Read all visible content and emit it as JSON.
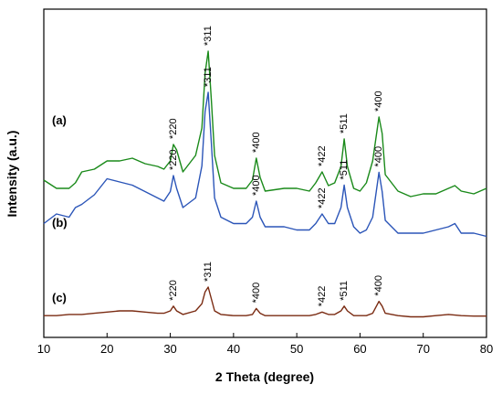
{
  "chart_data": {
    "type": "line",
    "xlabel": "2 Theta (degree)",
    "ylabel": "Intensity (a.u.)",
    "xlim": [
      10,
      80
    ],
    "xticks": [
      "10",
      "20",
      "30",
      "40",
      "50",
      "60",
      "70",
      "80"
    ],
    "yticks_shown": false,
    "grid": false,
    "series": [
      {
        "name": "(a)",
        "color": "#1a8a1a",
        "x": [
          10,
          12,
          14,
          15,
          16,
          18,
          20,
          22,
          24,
          26,
          28,
          29,
          30,
          30.5,
          31,
          32,
          34,
          35,
          35.5,
          36,
          36.5,
          37,
          38,
          40,
          42,
          43,
          43.6,
          44.2,
          45,
          48,
          50,
          52,
          53,
          54,
          55,
          56,
          57,
          57.5,
          58,
          59,
          60,
          61,
          62,
          63,
          63.5,
          64,
          66,
          68,
          70,
          72,
          74,
          75,
          76,
          78,
          80
        ],
        "y": [
          0.53,
          0.5,
          0.5,
          0.52,
          0.56,
          0.57,
          0.6,
          0.6,
          0.61,
          0.59,
          0.58,
          0.57,
          0.6,
          0.66,
          0.64,
          0.56,
          0.62,
          0.72,
          0.92,
          1.0,
          0.82,
          0.62,
          0.52,
          0.5,
          0.5,
          0.53,
          0.61,
          0.54,
          0.49,
          0.5,
          0.5,
          0.49,
          0.52,
          0.56,
          0.51,
          0.52,
          0.58,
          0.68,
          0.58,
          0.5,
          0.49,
          0.52,
          0.6,
          0.76,
          0.7,
          0.55,
          0.49,
          0.47,
          0.48,
          0.48,
          0.5,
          0.51,
          0.49,
          0.48,
          0.5
        ]
      },
      {
        "name": "(b)",
        "color": "#2b55b8",
        "x": [
          10,
          12,
          14,
          15,
          16,
          18,
          20,
          22,
          24,
          26,
          28,
          29,
          30,
          30.5,
          31,
          32,
          34,
          35,
          35.5,
          36,
          36.5,
          37,
          38,
          40,
          42,
          43,
          43.6,
          44.2,
          45,
          48,
          50,
          52,
          53,
          54,
          55,
          56,
          57,
          57.5,
          58,
          59,
          60,
          61,
          62,
          63,
          63.5,
          64,
          66,
          68,
          70,
          72,
          74,
          75,
          76,
          78,
          80
        ],
        "y": [
          0.25,
          0.28,
          0.27,
          0.3,
          0.31,
          0.34,
          0.39,
          0.38,
          0.37,
          0.35,
          0.33,
          0.32,
          0.35,
          0.4,
          0.36,
          0.3,
          0.33,
          0.43,
          0.6,
          0.66,
          0.5,
          0.33,
          0.27,
          0.25,
          0.25,
          0.27,
          0.32,
          0.27,
          0.24,
          0.24,
          0.23,
          0.23,
          0.25,
          0.28,
          0.25,
          0.25,
          0.3,
          0.37,
          0.3,
          0.24,
          0.22,
          0.23,
          0.27,
          0.41,
          0.35,
          0.26,
          0.22,
          0.22,
          0.22,
          0.23,
          0.24,
          0.25,
          0.22,
          0.22,
          0.21
        ]
      },
      {
        "name": "(c)",
        "color": "#7a2b12",
        "x": [
          10,
          12,
          14,
          16,
          18,
          20,
          22,
          24,
          26,
          28,
          29,
          30,
          30.5,
          31,
          32,
          34,
          35,
          35.5,
          36,
          36.5,
          37,
          38,
          40,
          42,
          43,
          43.6,
          44.2,
          45,
          48,
          50,
          52,
          53,
          54,
          55,
          56,
          57,
          57.5,
          58,
          59,
          60,
          61,
          62,
          63,
          63.5,
          64,
          66,
          68,
          70,
          72,
          74,
          76,
          78,
          80
        ],
        "y": [
          0.08,
          0.08,
          0.085,
          0.085,
          0.09,
          0.095,
          0.1,
          0.1,
          0.095,
          0.09,
          0.09,
          0.1,
          0.12,
          0.1,
          0.085,
          0.1,
          0.13,
          0.18,
          0.2,
          0.15,
          0.1,
          0.085,
          0.08,
          0.08,
          0.085,
          0.11,
          0.09,
          0.08,
          0.08,
          0.08,
          0.08,
          0.085,
          0.095,
          0.085,
          0.085,
          0.1,
          0.12,
          0.1,
          0.08,
          0.08,
          0.08,
          0.09,
          0.14,
          0.12,
          0.09,
          0.08,
          0.075,
          0.075,
          0.08,
          0.085,
          0.08,
          0.078,
          0.078
        ]
      }
    ],
    "peak_labels": [
      {
        "text": "*220",
        "x": 30.5,
        "series": 0
      },
      {
        "text": "*311",
        "x": 36,
        "series": 0
      },
      {
        "text": "*400",
        "x": 43.6,
        "series": 0
      },
      {
        "text": "*422",
        "x": 54,
        "series": 0
      },
      {
        "text": "*511",
        "x": 57.5,
        "series": 0
      },
      {
        "text": "*400",
        "x": 63,
        "series": 0
      },
      {
        "text": "*220",
        "x": 30.5,
        "series": 1
      },
      {
        "text": "*311",
        "x": 36,
        "series": 1
      },
      {
        "text": "*400",
        "x": 43.6,
        "series": 1
      },
      {
        "text": "*422",
        "x": 54,
        "series": 1
      },
      {
        "text": "*511",
        "x": 57.5,
        "series": 1
      },
      {
        "text": "*400",
        "x": 63,
        "series": 1
      },
      {
        "text": "*220",
        "x": 30.5,
        "series": 2
      },
      {
        "text": "*311",
        "x": 36,
        "series": 2
      },
      {
        "text": "*400",
        "x": 43.6,
        "series": 2
      },
      {
        "text": "*422",
        "x": 54,
        "series": 2
      },
      {
        "text": "*511",
        "x": 57.5,
        "series": 2
      },
      {
        "text": "*400",
        "x": 63,
        "series": 2
      }
    ]
  }
}
